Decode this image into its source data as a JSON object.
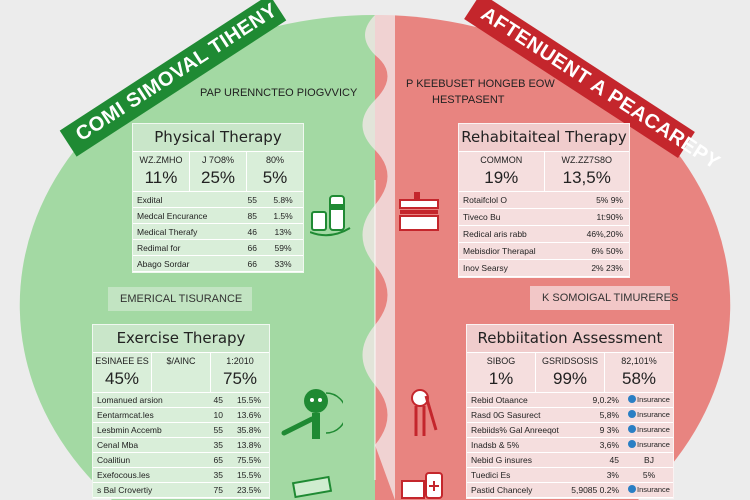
{
  "colors": {
    "green_bg": "#a3d9a3",
    "green_banner": "#1f8a33",
    "red_bg": "#e88480",
    "red_banner": "#c4262c",
    "page_bg": "#ececec"
  },
  "left": {
    "banner": "COMI SIMOVAL TIHENY",
    "subtitle": "PAP URENNCTEO PIOGVVICY",
    "physical": {
      "title": "Physical Therapy",
      "header": [
        {
          "label": "WZ.ZMHO",
          "value": "11%"
        },
        {
          "label": "J 7O8%",
          "value": "25%"
        },
        {
          "label": "80%",
          "value": "5%"
        }
      ],
      "rows": [
        [
          "Exdital",
          "55",
          "5.8%"
        ],
        [
          "Medcal Encurance",
          "85",
          "1.5%"
        ],
        [
          "Medical Therafy",
          "46",
          "13%"
        ],
        [
          "Redimal for",
          "66",
          "59%"
        ],
        [
          "Abago Sordar",
          "66",
          "33%"
        ]
      ]
    },
    "label": "EMERICAL TISURANCE",
    "exercise": {
      "title": "Exercise Therapy",
      "header": [
        {
          "label": "ESINAEE ES",
          "value": "45%"
        },
        {
          "label": "$/AINC",
          "value": ""
        },
        {
          "label": "1:2010",
          "value": "75%"
        }
      ],
      "rows": [
        [
          "Lomanued arsion",
          "45",
          "15.5%"
        ],
        [
          "Eentarmcat.les",
          "10",
          "13.6%"
        ],
        [
          "Lesbmin Accemb",
          "55",
          "35.8%"
        ],
        [
          "Cenal Mba",
          "35",
          "13.8%"
        ],
        [
          "Coalitiun",
          "65",
          "75.5%"
        ],
        [
          "Exefocous.les",
          "35",
          "15.5%"
        ],
        [
          "s Bal Crovertiy",
          "75",
          "23.5%"
        ]
      ]
    }
  },
  "right": {
    "banner": "AFTENUENT A PEACAREPY",
    "subtitle_line1": "P KEEBUSET HONGEB EOW",
    "subtitle_line2": "HESTPASENT",
    "rehab_therapy": {
      "title": "Rehabitaiteal Therapy",
      "header": [
        {
          "label": "COMMON",
          "value": "19%"
        },
        {
          "label": "WZ.ZZ7S8O",
          "value": "13,5%"
        }
      ],
      "rows": [
        [
          "Rotaifclol O",
          "5% 9%"
        ],
        [
          "Tiveco Bu",
          "1t:90%"
        ],
        [
          "Redical aris rabb",
          "46%,20%"
        ],
        [
          "Mebisdior Therapal",
          "6% 50%"
        ],
        [
          "Inov Searsy",
          "2% 23%"
        ]
      ]
    },
    "label": "K SOMOIGAL TIMURERES",
    "assessment": {
      "title": "Rebbiitation Assessment",
      "header": [
        {
          "label": "SIBOG",
          "value": "1%"
        },
        {
          "label": "GSRIDSOSIS",
          "value": "99%"
        },
        {
          "label": "82,101%",
          "value": "58%"
        }
      ],
      "rows": [
        [
          "Rebid Otaance",
          "9,0.2%",
          "Insurance"
        ],
        [
          "Rasd 0G Sasurect",
          "5,8%",
          "Insurance"
        ],
        [
          "Rebiids% Gal Anreeqot",
          "9 3%",
          "Insurance"
        ],
        [
          "Inadsb & 5%",
          "3,6%",
          "Insurance"
        ],
        [
          "Nebid G insures",
          "45",
          "BJ"
        ],
        [
          "Tuedici Es",
          "3%",
          "5%"
        ],
        [
          "Pastid Chancely",
          "5,9085 0.2%",
          "Insurance"
        ]
      ]
    }
  }
}
